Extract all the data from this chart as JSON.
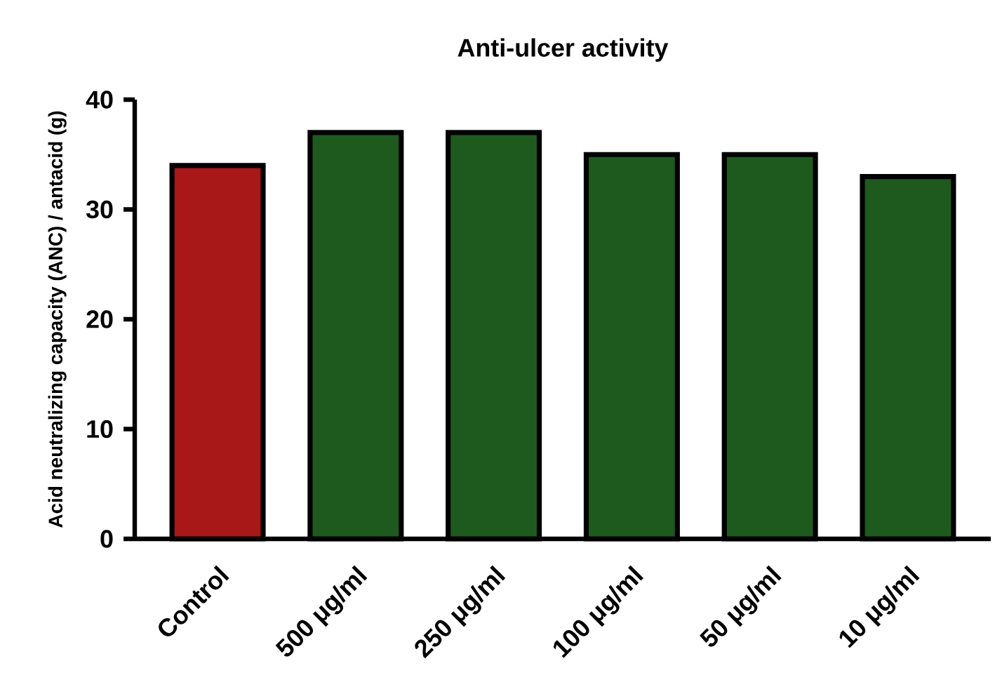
{
  "chart_data": {
    "type": "bar",
    "title": "Anti-ulcer activity",
    "ylabel": "Acid neutralizing capacity (ANC) / antacid (g)",
    "categories": [
      "Control",
      "500 μg/ml",
      "250 μg/ml",
      "100 μg/ml",
      "50 μg/ml",
      "10 μg/ml"
    ],
    "values": [
      34,
      37,
      37,
      35,
      35,
      33
    ],
    "colors": [
      "#a81818",
      "#1e5a1e",
      "#1e5a1e",
      "#1e5a1e",
      "#1e5a1e",
      "#1e5a1e"
    ],
    "ylim": [
      0,
      40
    ],
    "yticks": [
      0,
      10,
      20,
      30,
      40
    ]
  }
}
